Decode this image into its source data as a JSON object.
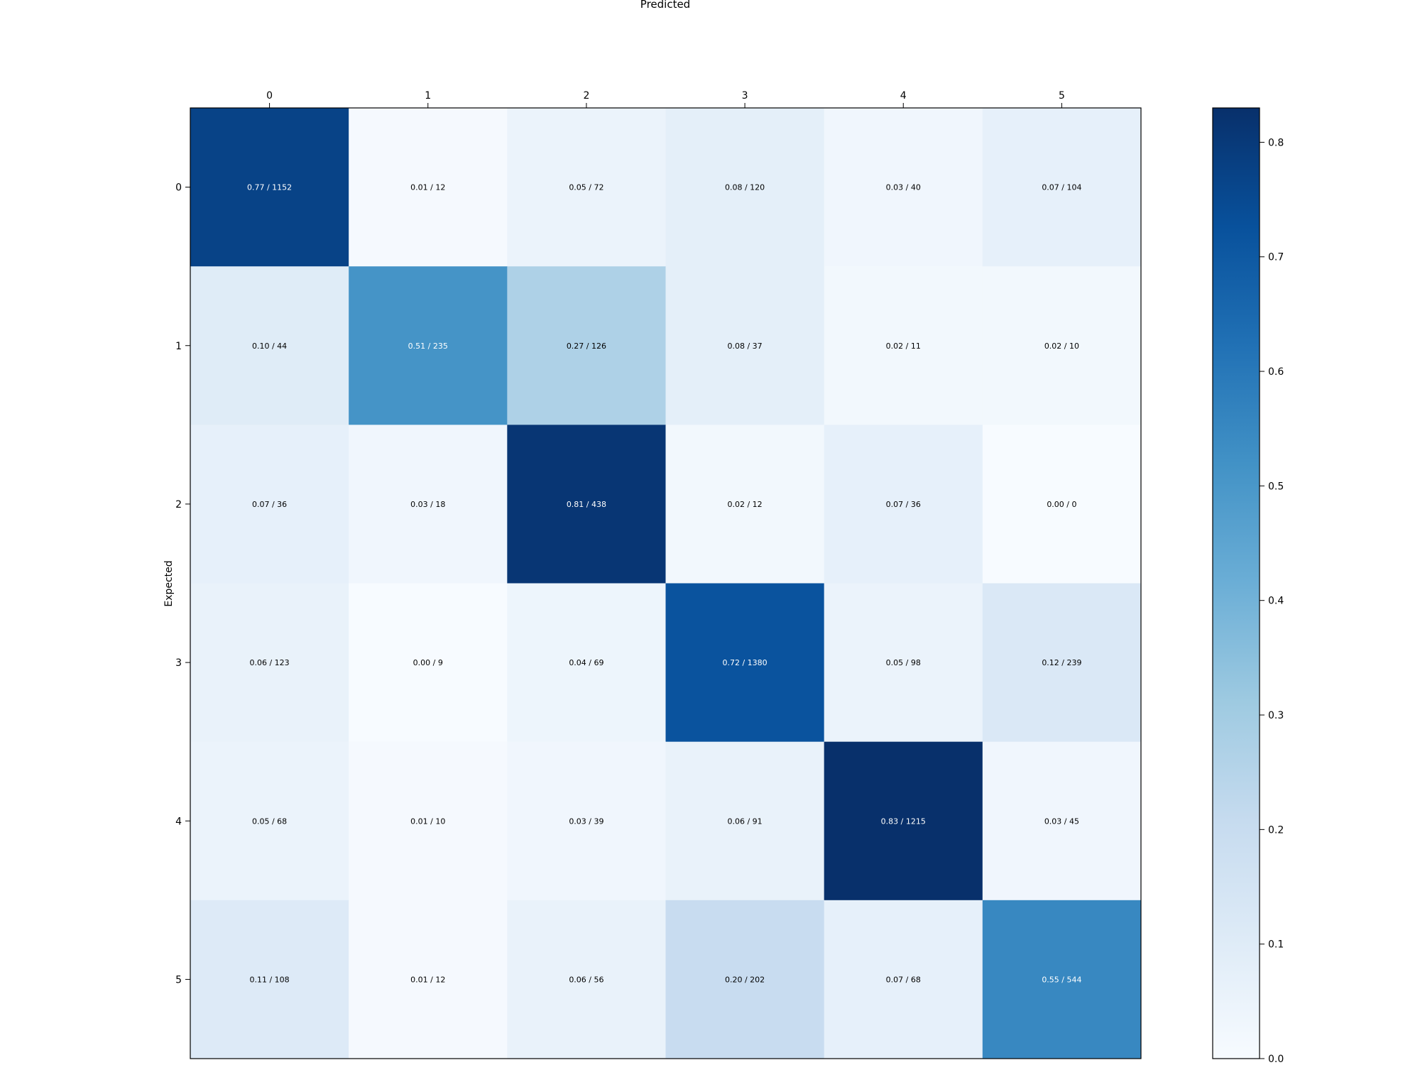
{
  "chart_data": {
    "type": "heatmap",
    "title": "",
    "xlabel": "Predicted",
    "ylabel": "Expected",
    "x_categories": [
      "0",
      "1",
      "2",
      "3",
      "4",
      "5"
    ],
    "y_categories": [
      "0",
      "1",
      "2",
      "3",
      "4",
      "5"
    ],
    "values": [
      [
        0.77,
        0.01,
        0.05,
        0.08,
        0.03,
        0.07
      ],
      [
        0.1,
        0.51,
        0.27,
        0.08,
        0.02,
        0.02
      ],
      [
        0.07,
        0.03,
        0.81,
        0.02,
        0.07,
        0.0
      ],
      [
        0.06,
        0.0,
        0.04,
        0.72,
        0.05,
        0.12
      ],
      [
        0.05,
        0.01,
        0.03,
        0.06,
        0.83,
        0.03
      ],
      [
        0.11,
        0.01,
        0.06,
        0.2,
        0.07,
        0.55
      ]
    ],
    "counts": [
      [
        1152,
        12,
        72,
        120,
        40,
        104
      ],
      [
        44,
        235,
        126,
        37,
        11,
        10
      ],
      [
        36,
        18,
        438,
        12,
        36,
        0
      ],
      [
        123,
        9,
        69,
        1380,
        98,
        239
      ],
      [
        68,
        10,
        39,
        91,
        1215,
        45
      ],
      [
        108,
        12,
        56,
        202,
        68,
        544
      ]
    ],
    "cell_labels": [
      [
        "0.77 / 1152",
        "0.01 / 12",
        "0.05 / 72",
        "0.08 / 120",
        "0.03 / 40",
        "0.07 / 104"
      ],
      [
        "0.10 / 44",
        "0.51 / 235",
        "0.27 / 126",
        "0.08 / 37",
        "0.02 / 11",
        "0.02 / 10"
      ],
      [
        "0.07 / 36",
        "0.03 / 18",
        "0.81 / 438",
        "0.02 / 12",
        "0.07 / 36",
        "0.00 / 0"
      ],
      [
        "0.06 / 123",
        "0.00 / 9",
        "0.04 / 69",
        "0.72 / 1380",
        "0.05 / 98",
        "0.12 / 239"
      ],
      [
        "0.05 / 68",
        "0.01 / 10",
        "0.03 / 39",
        "0.06 / 91",
        "0.83 / 1215",
        "0.03 / 45"
      ],
      [
        "0.11 / 108",
        "0.01 / 12",
        "0.06 / 56",
        "0.20 / 202",
        "0.07 / 68",
        "0.55 / 544"
      ]
    ],
    "x_axis_position": "top",
    "colormap": "Blues",
    "colormap_stops": [
      "#f7fbff",
      "#deebf7",
      "#c6dbef",
      "#9ecae1",
      "#6baed6",
      "#4292c6",
      "#2171b5",
      "#08519c",
      "#08306b"
    ],
    "vmin": 0.0,
    "vmax": 0.83,
    "colorbar": {
      "ticks": [
        "0.0",
        "0.1",
        "0.2",
        "0.3",
        "0.4",
        "0.5",
        "0.6",
        "0.7",
        "0.8"
      ],
      "tick_values": [
        0.0,
        0.1,
        0.2,
        0.3,
        0.4,
        0.5,
        0.6,
        0.7,
        0.8
      ]
    },
    "grid": false
  }
}
